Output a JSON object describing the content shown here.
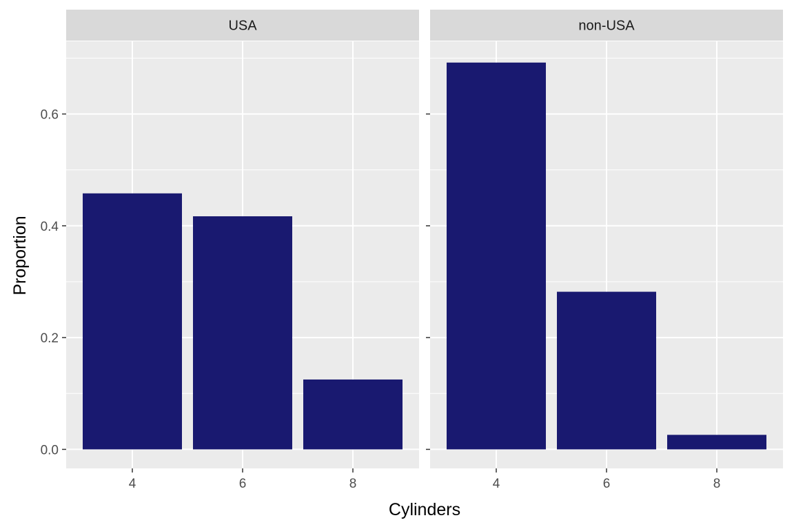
{
  "chart_data": {
    "type": "bar",
    "facets": [
      "USA",
      "non-USA"
    ],
    "categories": [
      "4",
      "6",
      "8"
    ],
    "series": [
      {
        "facet": "USA",
        "values": [
          0.458,
          0.417,
          0.125
        ]
      },
      {
        "facet": "non-USA",
        "values": [
          0.692,
          0.282,
          0.026
        ]
      }
    ],
    "xlabel": "Cylinders",
    "ylabel": "Proportion",
    "ylim": [
      -0.034,
      0.73
    ],
    "yticks": [
      0.0,
      0.2,
      0.4,
      0.6
    ],
    "ytick_labels": [
      "0.0",
      "0.2",
      "0.4",
      "0.6"
    ],
    "grid": true,
    "bar_color": "#191970",
    "panel_background": "#ebebeb",
    "strip_background": "#d9d9d9"
  }
}
